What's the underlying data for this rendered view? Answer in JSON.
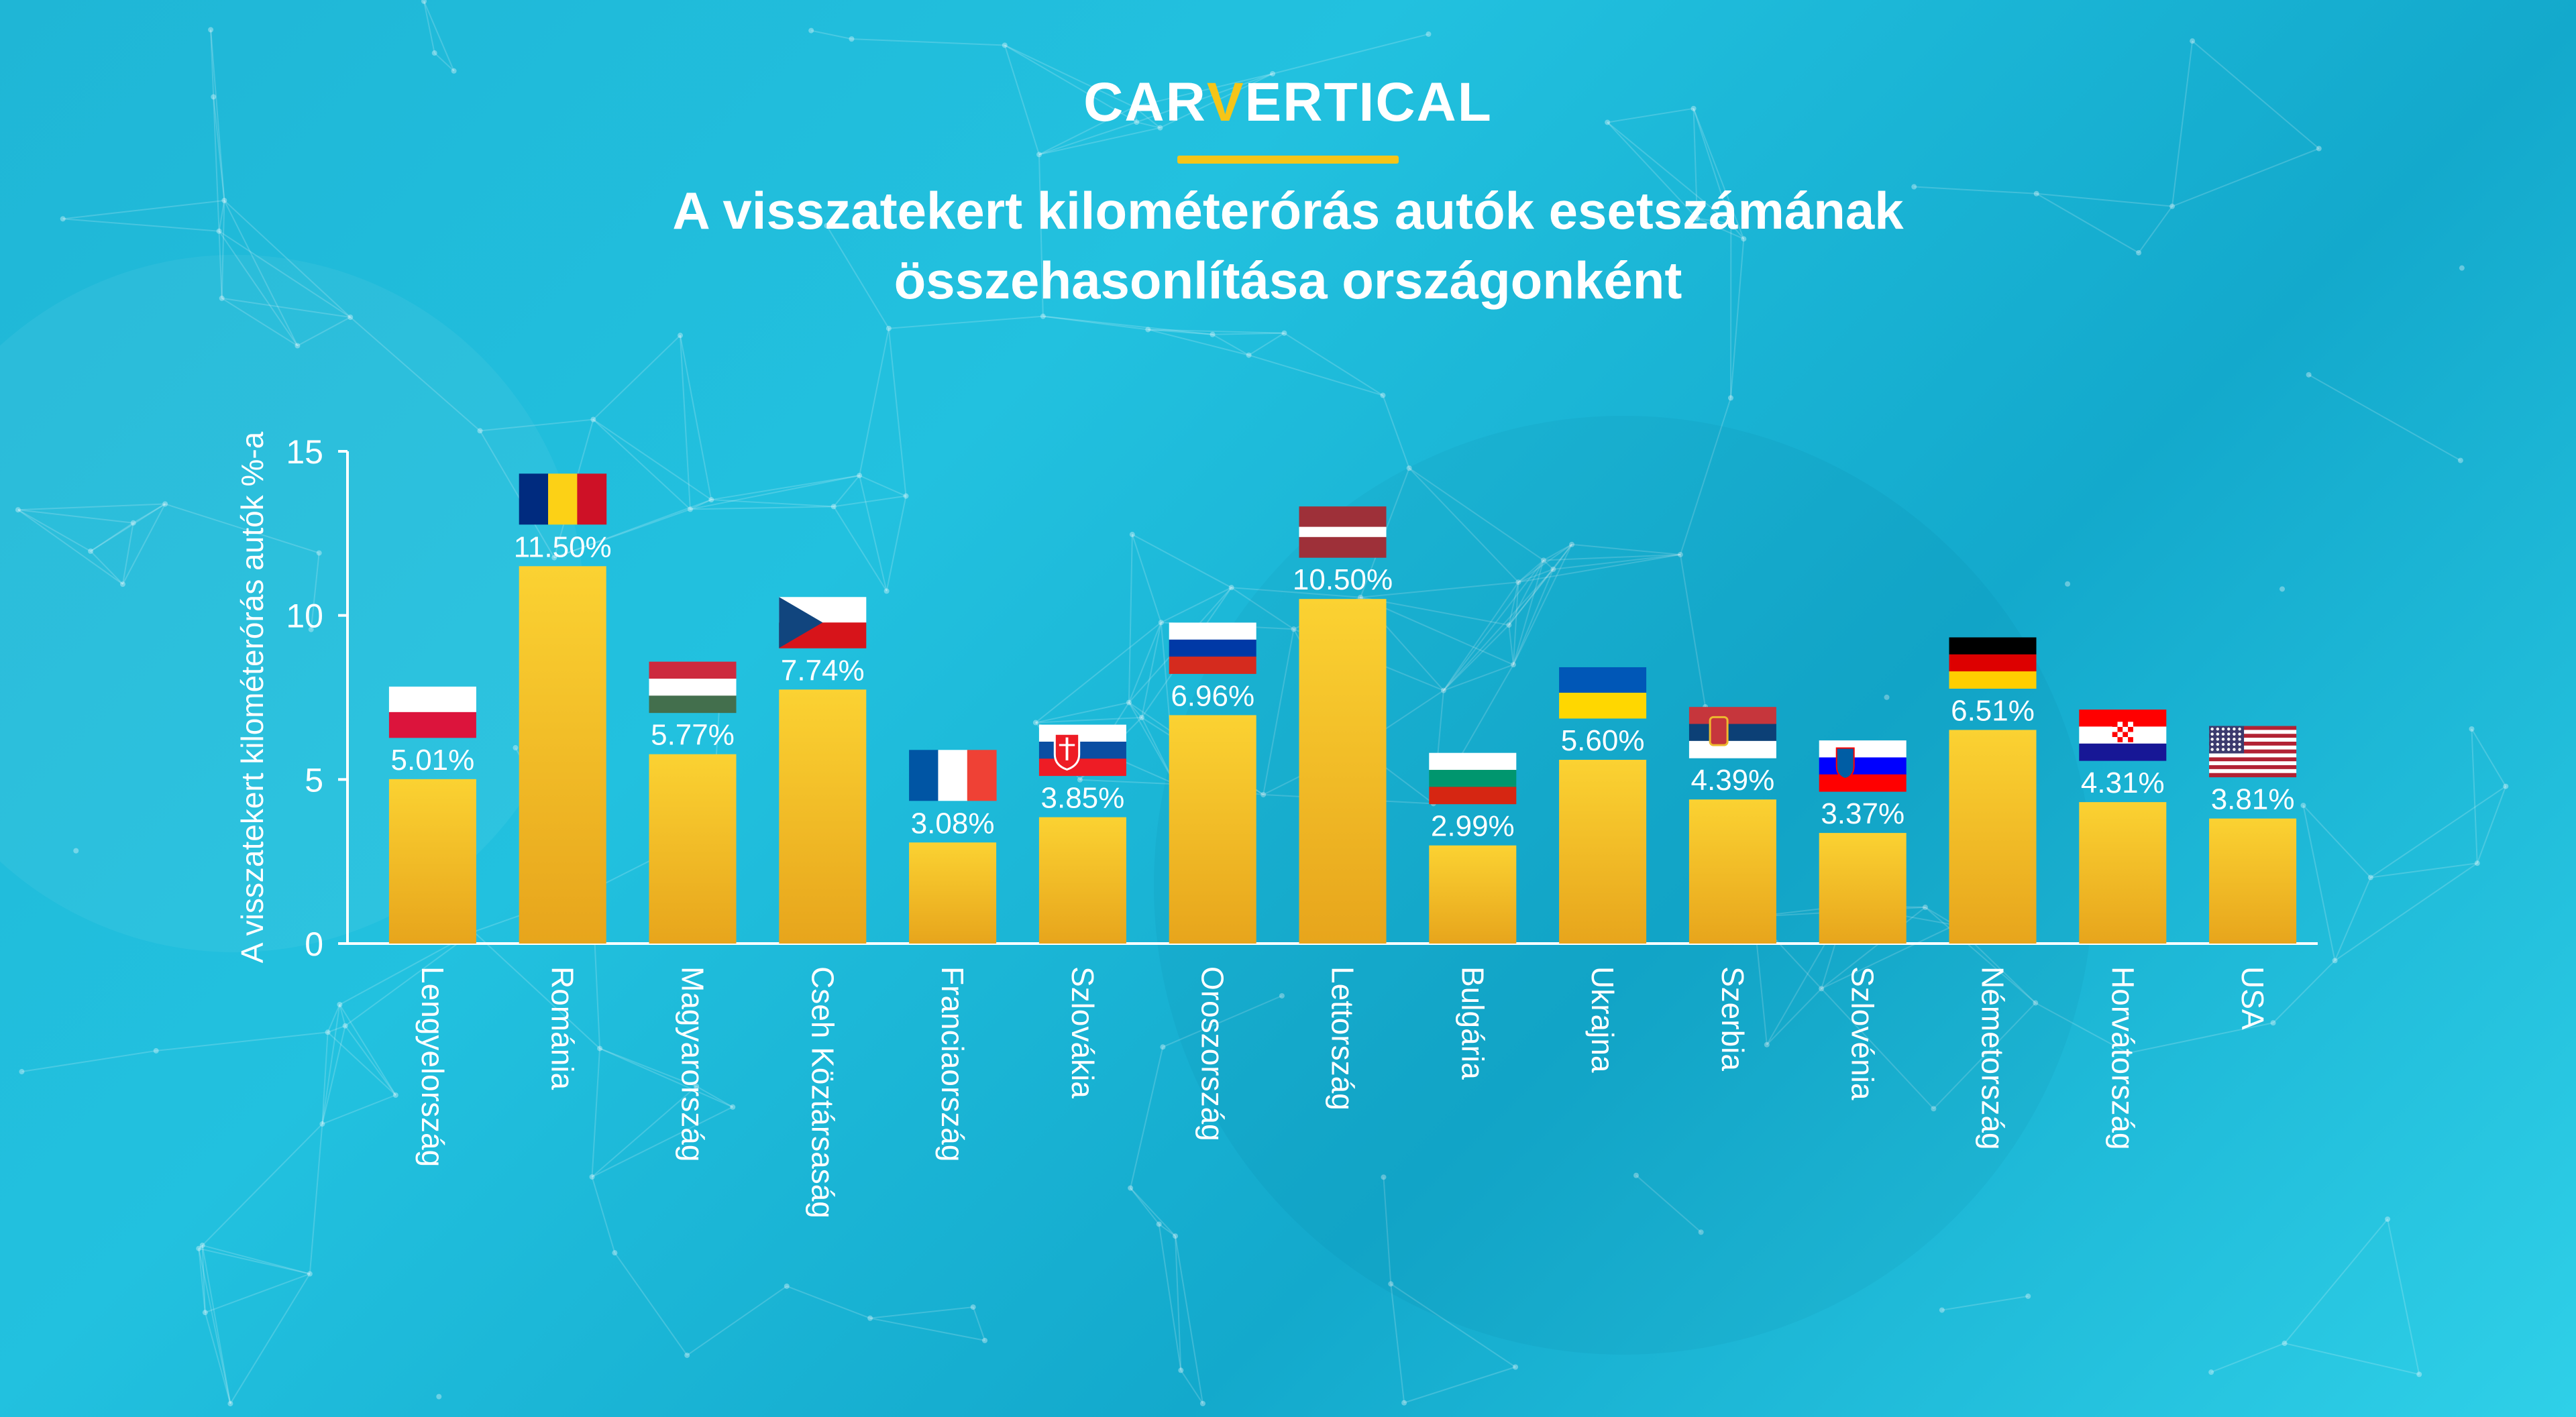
{
  "logo": {
    "part1": "CAR",
    "part2": "V",
    "part3": "ERTICAL"
  },
  "title": {
    "line1": "A visszatekert kilométerórás autók esetszámának",
    "line2": "összehasonlítása országonként"
  },
  "colors": {
    "bar_top": "#fbd232",
    "bar_bottom": "#e7a51c",
    "accent": "#f5c518",
    "axis": "#ffffff"
  },
  "chart_data": {
    "type": "bar",
    "title": "A visszatekert kilométerórás autók esetszámának összehasonlítása országonként",
    "xlabel": "",
    "ylabel": "A visszatekert kilométerórás autók %-a",
    "ylim": [
      0,
      15
    ],
    "yticks": [
      0,
      5,
      10,
      15
    ],
    "grid": false,
    "categories": [
      "Lengyelország",
      "Románia",
      "Magyarország",
      "Cseh Köztársaság",
      "Franciaország",
      "Szlovákia",
      "Oroszország",
      "Lettország",
      "Bulgária",
      "Ukrajna",
      "Szerbia",
      "Szlovénia",
      "Németország",
      "Horvátország",
      "USA"
    ],
    "values": [
      5.01,
      11.5,
      5.77,
      7.74,
      3.08,
      3.85,
      6.96,
      10.5,
      2.99,
      5.6,
      4.39,
      3.37,
      6.51,
      4.31,
      3.81
    ],
    "data_labels": [
      "5.01%",
      "11.50%",
      "5.77%",
      "7.74%",
      "3.08%",
      "3.85%",
      "6.96%",
      "10.50%",
      "2.99%",
      "5.60%",
      "4.39%",
      "3.37%",
      "6.51%",
      "4.31%",
      "3.81%"
    ],
    "flags": [
      "poland",
      "romania",
      "hungary",
      "czech",
      "france",
      "slovakia",
      "russia",
      "latvia",
      "bulgaria",
      "ukraine",
      "serbia",
      "slovenia",
      "germany",
      "croatia",
      "usa"
    ]
  }
}
